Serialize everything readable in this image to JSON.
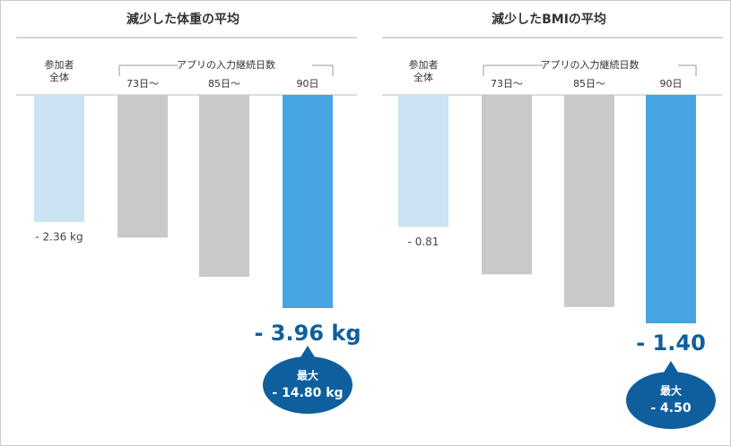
{
  "chart_data": [
    {
      "type": "bar",
      "title": "減少した体重の平均",
      "group_label": "アプリの入力継続日数",
      "categories": [
        "参加者全体",
        "73日〜",
        "85日〜",
        "90日"
      ],
      "values": [
        -2.36,
        -2.65,
        -3.38,
        -3.96
      ],
      "value_labels": [
        "- 2.36 kg",
        null,
        null,
        "- 3.96 kg"
      ],
      "colors": [
        "#cce3f3",
        "#c8c9ca",
        "#c8c9ca",
        "#46a5e0"
      ],
      "callout": [
        "最大",
        "- 14.80 kg"
      ]
    },
    {
      "type": "bar",
      "title": "減少したBMIの平均",
      "group_label": "アプリの入力継続日数",
      "categories": [
        "参加者全体",
        "73日〜",
        "85日〜",
        "90日"
      ],
      "values": [
        -0.81,
        -1.1,
        -1.3,
        -1.4
      ],
      "value_labels": [
        "- 0.81",
        null,
        null,
        "- 1.40"
      ],
      "colors": [
        "#cce3f3",
        "#c8c9ca",
        "#c8c9ca",
        "#46a5e0"
      ],
      "callout": [
        "最大",
        "- 4.50"
      ]
    }
  ]
}
